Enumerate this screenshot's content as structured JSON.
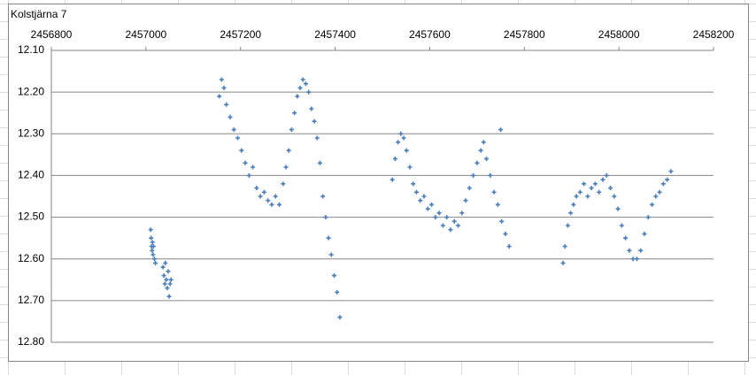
{
  "chart_data": {
    "type": "scatter",
    "title": "Kolstjärna 7",
    "series": [
      {
        "color": "#4a7ebb",
        "x": [
          2457010,
          2457011,
          2457012,
          2457013,
          2457014,
          2457015,
          2457016,
          2457018,
          2457020,
          2457036,
          2457038,
          2457040,
          2457041,
          2457043,
          2457045,
          2457047,
          2457049,
          2457051,
          2457053,
          2457155,
          2457160,
          2457165,
          2457170,
          2457178,
          2457186,
          2457194,
          2457202,
          2457210,
          2457218,
          2457226,
          2457234,
          2457242,
          2457250,
          2457258,
          2457266,
          2457274,
          2457282,
          2457290,
          2457296,
          2457302,
          2457308,
          2457314,
          2457320,
          2457326,
          2457332,
          2457338,
          2457344,
          2457350,
          2457356,
          2457362,
          2457368,
          2457374,
          2457380,
          2457386,
          2457392,
          2457398,
          2457404,
          2457410,
          2457521,
          2457527,
          2457533,
          2457539,
          2457545,
          2457551,
          2457558,
          2457565,
          2457572,
          2457580,
          2457588,
          2457596,
          2457604,
          2457612,
          2457620,
          2457628,
          2457636,
          2457644,
          2457652,
          2457660,
          2457668,
          2457676,
          2457684,
          2457692,
          2457700,
          2457708,
          2457714,
          2457720,
          2457728,
          2457736,
          2457744,
          2457752,
          2457760,
          2457768,
          2457750,
          2457882,
          2457886,
          2457892,
          2457898,
          2457904,
          2457910,
          2457918,
          2457926,
          2457934,
          2457942,
          2457950,
          2457958,
          2457966,
          2457974,
          2457982,
          2457990,
          2457998,
          2458006,
          2458014,
          2458022,
          2458030,
          2458038,
          2458046,
          2458054,
          2458062,
          2458070,
          2458078,
          2458086,
          2458094,
          2458102,
          2458110
        ],
        "values": [
          12.53,
          12.55,
          12.57,
          12.58,
          12.56,
          12.59,
          12.57,
          12.6,
          12.61,
          12.62,
          12.64,
          12.66,
          12.61,
          12.65,
          12.67,
          12.63,
          12.69,
          12.66,
          12.65,
          12.21,
          12.17,
          12.19,
          12.23,
          12.26,
          12.29,
          12.31,
          12.34,
          12.37,
          12.4,
          12.38,
          12.43,
          12.45,
          12.44,
          12.46,
          12.47,
          12.45,
          12.47,
          12.42,
          12.38,
          12.34,
          12.29,
          12.25,
          12.21,
          12.19,
          12.17,
          12.18,
          12.2,
          12.24,
          12.27,
          12.31,
          12.37,
          12.45,
          12.5,
          12.55,
          12.59,
          12.64,
          12.68,
          12.74,
          12.41,
          12.36,
          12.32,
          12.3,
          12.31,
          12.34,
          12.38,
          12.42,
          12.44,
          12.46,
          12.45,
          12.48,
          12.47,
          12.5,
          12.49,
          12.52,
          12.5,
          12.53,
          12.51,
          12.52,
          12.49,
          12.46,
          12.43,
          12.4,
          12.37,
          12.34,
          12.32,
          12.36,
          12.4,
          12.44,
          12.47,
          12.51,
          12.54,
          12.57,
          12.29,
          12.61,
          12.57,
          12.52,
          12.49,
          12.47,
          12.45,
          12.44,
          12.42,
          12.45,
          12.43,
          12.42,
          12.44,
          12.41,
          12.4,
          12.43,
          12.45,
          12.48,
          12.52,
          12.55,
          12.58,
          12.6,
          12.6,
          12.58,
          12.54,
          12.5,
          12.47,
          12.45,
          12.44,
          12.42,
          12.41,
          12.39
        ]
      }
    ],
    "xlim": [
      2456800,
      2458200
    ],
    "xticks": [
      2456800,
      2457000,
      2457200,
      2457400,
      2457600,
      2457800,
      2458000,
      2458200
    ],
    "ylim": [
      12.1,
      12.8
    ],
    "y_reversed": true,
    "yticks": [
      {
        "value": 12.1,
        "label": "12.10"
      },
      {
        "value": 12.2,
        "label": "12.20"
      },
      {
        "value": 12.3,
        "label": "12.30"
      },
      {
        "value": 12.4,
        "label": "12.40"
      },
      {
        "value": 12.5,
        "label": "12.50"
      },
      {
        "value": 12.6,
        "label": "12.60"
      },
      {
        "value": 12.7,
        "label": "12.70"
      },
      {
        "value": 12.8,
        "label": "12.80"
      }
    ],
    "grid": true
  }
}
